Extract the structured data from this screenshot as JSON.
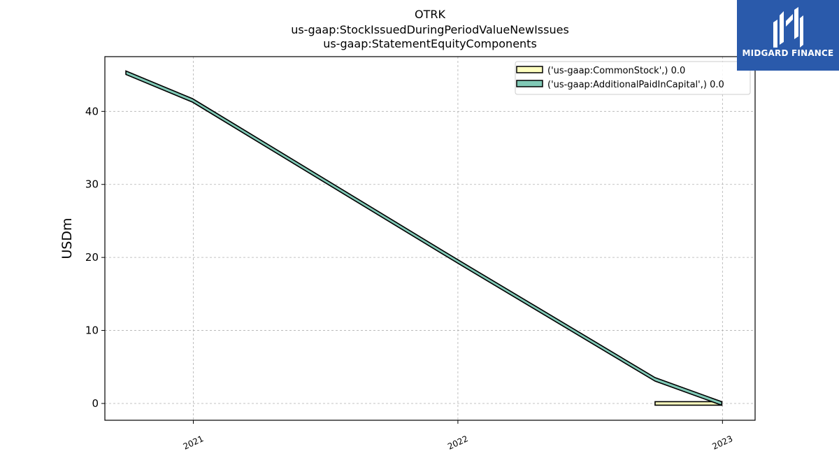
{
  "chart_data": {
    "type": "area",
    "title_lines": [
      "OTRK",
      "us-gaap:StockIssuedDuringPeriodValueNewIssues",
      "us-gaap:StatementEquityComponents"
    ],
    "ylabel": "USDm",
    "xlabel": "",
    "x_ticks": [
      "2021",
      "2022",
      "2023"
    ],
    "y_ticks": [
      0,
      10,
      20,
      30,
      40
    ],
    "ylim": [
      -2.3,
      47.5
    ],
    "grid": true,
    "legend_placement": "top-right",
    "series": [
      {
        "name": "('us-gaap:CommonStock',) 0.0",
        "color": "#ffffbf",
        "points": [
          [
            "2022-09-30",
            0.0
          ],
          [
            "2022-12-31",
            0.0
          ]
        ]
      },
      {
        "name": "('us-gaap:AdditionalPaidInCapital',) 0.0",
        "color": "#80c9b6",
        "points": [
          [
            "2020-09-30",
            45.3
          ],
          [
            "2020-12-31",
            41.5
          ],
          [
            "2021-12-31",
            19.5
          ],
          [
            "2022-09-30",
            3.3
          ],
          [
            "2022-12-31",
            0.0
          ]
        ]
      }
    ]
  },
  "logo": {
    "text": "MIDGARD FINANCE",
    "bg": "#2a5aab"
  }
}
